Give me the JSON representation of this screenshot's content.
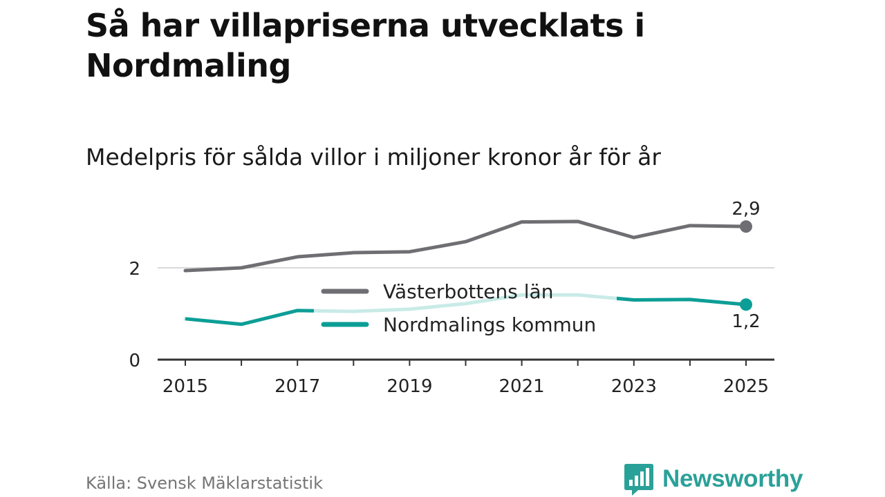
{
  "title": "Så har villapriserna utvecklats i Nordmaling",
  "subtitle": "Medelpris för sålda villor i miljoner kronor år för år",
  "source": "Källa: Svensk Mäklarstatistik",
  "brand": "Newsworthy",
  "colors": {
    "vasterbotten": "#6f6f73",
    "nordmaling": "#0c9e96",
    "nordmaling_faded": "#c9ebe7",
    "axis": "#333333",
    "grid": "#d9d9d9",
    "brand": "#2aa198"
  },
  "chart_data": {
    "type": "line",
    "title": "Medelpris för sålda villor i miljoner kronor år för år",
    "xlabel": "",
    "ylabel": "",
    "x": [
      2015,
      2016,
      2017,
      2018,
      2019,
      2020,
      2021,
      2022,
      2023,
      2024,
      2025
    ],
    "xlim": [
      2015,
      2025
    ],
    "ylim": [
      0,
      3
    ],
    "y_ticks": [
      0,
      2
    ],
    "y_tick_labels": [
      "0",
      "2"
    ],
    "x_ticks": [
      2015,
      2017,
      2019,
      2021,
      2023,
      2025
    ],
    "x_tick_labels": [
      "2015",
      "2017",
      "2019",
      "2021",
      "2023",
      "2025"
    ],
    "grid": true,
    "legend_position": "center",
    "series": [
      {
        "name": "Västerbottens län",
        "key": "vasterbotten",
        "values": [
          1.94,
          2.0,
          2.24,
          2.33,
          2.35,
          2.57,
          3.0,
          3.01,
          2.66,
          2.92,
          2.9
        ],
        "end_label": "2,9"
      },
      {
        "name": "Nordmalings kommun",
        "key": "nordmaling",
        "values": [
          0.89,
          0.77,
          1.07,
          1.05,
          1.1,
          1.22,
          1.41,
          1.41,
          1.3,
          1.31,
          1.2
        ],
        "end_label": "1,2"
      }
    ]
  }
}
